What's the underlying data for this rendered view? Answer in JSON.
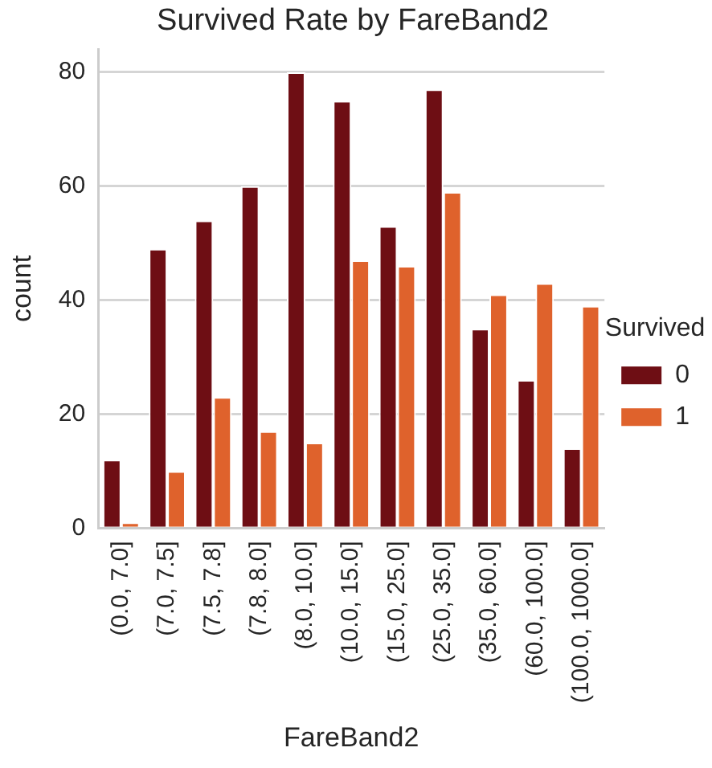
{
  "chart_data": {
    "type": "bar",
    "title": "Survived Rate by FareBand2",
    "xlabel": "FareBand2",
    "ylabel": "count",
    "legend_title": "Survived",
    "categories": [
      "(0.0, 7.0]",
      "(7.0, 7.5]",
      "(7.5, 7.8]",
      "(7.8, 8.0]",
      "(8.0, 10.0]",
      "(10.0, 15.0]",
      "(15.0, 25.0]",
      "(25.0, 35.0]",
      "(35.0, 60.0]",
      "(60.0, 100.0]",
      "(100.0, 1000.0]"
    ],
    "series": [
      {
        "name": "0",
        "color": "#6e0e14",
        "values": [
          12,
          49,
          54,
          60,
          80,
          75,
          53,
          77,
          35,
          26,
          14
        ]
      },
      {
        "name": "1",
        "color": "#df622c",
        "values": [
          1,
          10,
          23,
          17,
          15,
          47,
          46,
          59,
          41,
          43,
          39
        ]
      }
    ],
    "ylim": [
      0,
      84
    ],
    "yticks": [
      0,
      20,
      40,
      60,
      80
    ],
    "grid": "y",
    "legend": "right"
  }
}
